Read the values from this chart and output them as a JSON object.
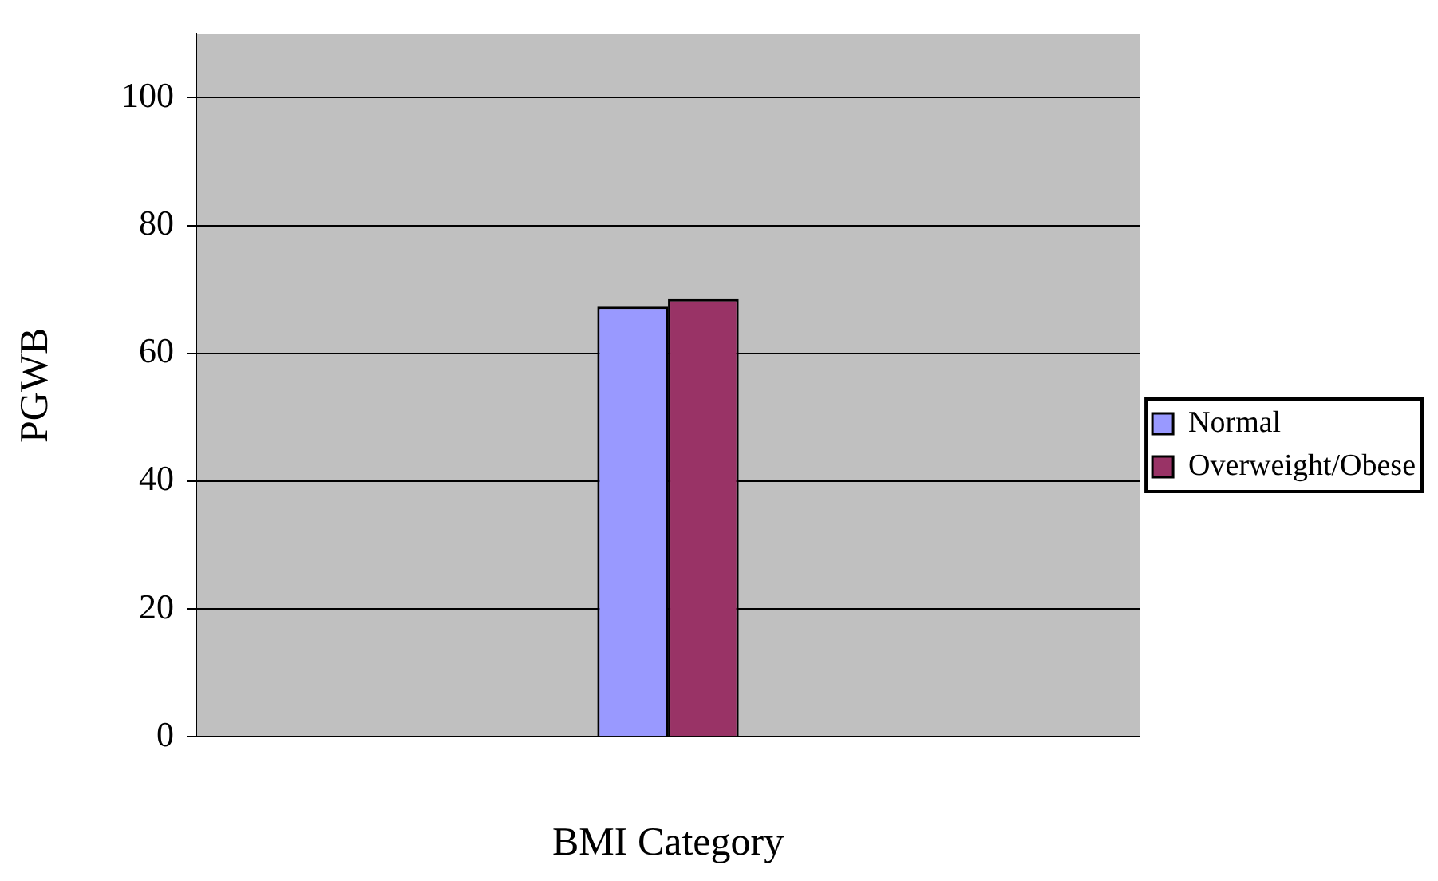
{
  "chart_data": {
    "type": "bar",
    "xlabel": "BMI Category",
    "ylabel": "PGWB",
    "categories": [
      null
    ],
    "series": [
      {
        "name": "Normal",
        "color": "#9999ff",
        "values": [
          67.3
        ]
      },
      {
        "name": "Overweight/Obese",
        "color": "#993366",
        "values": [
          68.5
        ]
      }
    ],
    "ylim": [
      0,
      110
    ],
    "yticks": [
      0,
      20,
      40,
      60,
      80,
      100
    ],
    "grid": "y",
    "legend": "right"
  }
}
